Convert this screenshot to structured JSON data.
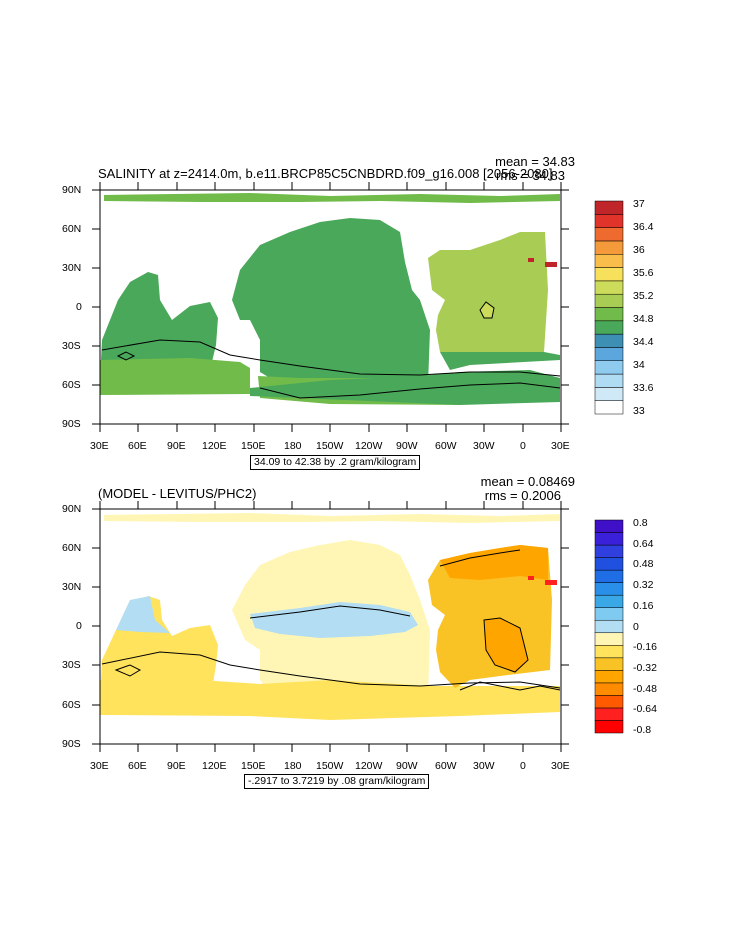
{
  "panel1": {
    "title": "SALINITY at z=2414.0m, b.e11.BRCP85C5CNBDRD.f09_g16.008 [2056-2080]",
    "mean_label": "mean = 34.83",
    "rms_label": "rms = 34.83",
    "contour_info": "34.09 to 42.38 by .2 gram/kilogram",
    "colorbar": {
      "labels": [
        "37",
        "36.4",
        "36",
        "35.6",
        "35.2",
        "34.8",
        "34.4",
        "34",
        "33.6",
        "33"
      ],
      "colors": [
        "#ffffff",
        "#cfe9f7",
        "#b0dcf3",
        "#8fcbee",
        "#5aa6dd",
        "#3d8fb4",
        "#4aa85a",
        "#71bb4b",
        "#a9cc54",
        "#cddb5a",
        "#f6e05c",
        "#f8bd4a",
        "#f59a3a",
        "#ee6a2e",
        "#e0342a",
        "#c0252a"
      ]
    }
  },
  "panel2": {
    "title": "(MODEL - LEVITUS/PHC2)",
    "mean_label": "mean = 0.08469",
    "rms_label": "rms = 0.2006",
    "contour_info": "-.2917 to 3.7219 by .08 gram/kilogram",
    "colorbar": {
      "labels": [
        "0.8",
        "0.64",
        "0.48",
        "0.32",
        "0.16",
        "0",
        "-0.16",
        "-0.32",
        "-0.48",
        "-0.64",
        "-0.8"
      ],
      "colors": [
        "#ff0000",
        "#ff2020",
        "#ff5a00",
        "#ff8c00",
        "#ffa500",
        "#f9c225",
        "#ffe35c",
        "#fff6b5",
        "#b2ddf2",
        "#7fcaf0",
        "#3aa8e6",
        "#2a8fe8",
        "#1f6ee6",
        "#2050e0",
        "#3040e0",
        "#3a20d8",
        "#4010c8"
      ]
    }
  },
  "axes": {
    "lat_labels": [
      "90N",
      "60N",
      "30N",
      "0",
      "30S",
      "60S",
      "90S"
    ],
    "lon_labels": [
      "30E",
      "60E",
      "90E",
      "120E",
      "150E",
      "180",
      "150W",
      "120W",
      "90W",
      "60W",
      "30W",
      "0",
      "30E"
    ]
  }
}
